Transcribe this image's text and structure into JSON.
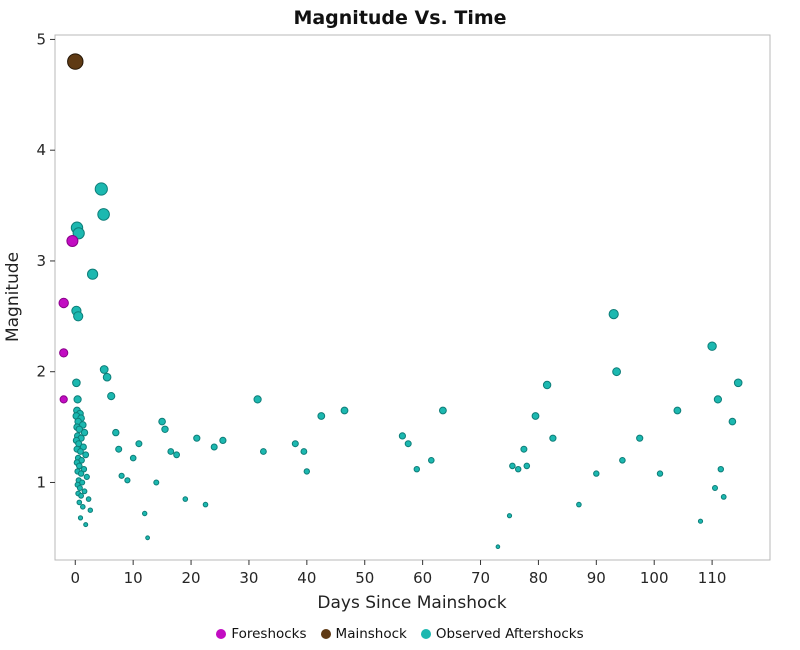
{
  "chart_data": {
    "type": "scatter",
    "title": "Magnitude Vs. Time",
    "xlabel": "Days Since Mainshock",
    "ylabel": "Magnitude",
    "xlim": [
      -3.5,
      120
    ],
    "ylim": [
      0.3,
      5.04
    ],
    "x_ticks": [
      0,
      10,
      20,
      30,
      40,
      50,
      60,
      70,
      80,
      90,
      100,
      110
    ],
    "y_ticks": [
      1,
      2,
      3,
      4,
      5
    ],
    "grid": false,
    "legend_position": "bottom-center",
    "marker_size_rule": "radius_px = 1.2 + 1.35 * magnitude",
    "series": [
      {
        "name": "Foreshocks",
        "color": "#c20cc2",
        "edge": "#8a008a",
        "z": 2,
        "points": [
          [
            -0.5,
            3.18
          ],
          [
            -2,
            2.62
          ],
          [
            -2,
            2.17
          ],
          [
            -2,
            1.75
          ]
        ]
      },
      {
        "name": "Mainshock",
        "color": "#5f3a14",
        "edge": "#241505",
        "z": 3,
        "points": [
          [
            0,
            4.8
          ]
        ]
      },
      {
        "name": "Observed Aftershocks",
        "color": "#1cb8b0",
        "edge": "#0d7d78",
        "z": 1,
        "points": [
          [
            0.3,
            3.3
          ],
          [
            0.6,
            3.25
          ],
          [
            0.2,
            2.55
          ],
          [
            0.5,
            2.5
          ],
          [
            3,
            2.88
          ],
          [
            0.2,
            1.9
          ],
          [
            0.4,
            1.75
          ],
          [
            0.3,
            1.65
          ],
          [
            0.8,
            1.62
          ],
          [
            0.2,
            1.6
          ],
          [
            1,
            1.58
          ],
          [
            0.5,
            1.55
          ],
          [
            1.3,
            1.52
          ],
          [
            0.3,
            1.5
          ],
          [
            0.7,
            1.48
          ],
          [
            1.6,
            1.45
          ],
          [
            0.4,
            1.42
          ],
          [
            1,
            1.4
          ],
          [
            0.2,
            1.38
          ],
          [
            0.6,
            1.35
          ],
          [
            1.4,
            1.32
          ],
          [
            0.3,
            1.3
          ],
          [
            0.9,
            1.28
          ],
          [
            1.8,
            1.25
          ],
          [
            0.5,
            1.22
          ],
          [
            1.1,
            1.2
          ],
          [
            0.3,
            1.18
          ],
          [
            0.7,
            1.15
          ],
          [
            1.5,
            1.12
          ],
          [
            0.4,
            1.1
          ],
          [
            1,
            1.08
          ],
          [
            2,
            1.05
          ],
          [
            0.6,
            1.02
          ],
          [
            1.2,
            1.0
          ],
          [
            0.4,
            0.98
          ],
          [
            0.8,
            0.95
          ],
          [
            1.6,
            0.92
          ],
          [
            0.5,
            0.9
          ],
          [
            1,
            0.88
          ],
          [
            2.3,
            0.85
          ],
          [
            0.7,
            0.82
          ],
          [
            1.3,
            0.78
          ],
          [
            2.6,
            0.75
          ],
          [
            0.9,
            0.68
          ],
          [
            1.8,
            0.62
          ],
          [
            4.5,
            3.65
          ],
          [
            4.9,
            3.42
          ],
          [
            5,
            2.02
          ],
          [
            5.5,
            1.95
          ],
          [
            6.2,
            1.78
          ],
          [
            7,
            1.45
          ],
          [
            7.5,
            1.3
          ],
          [
            8,
            1.06
          ],
          [
            9,
            1.02
          ],
          [
            10,
            1.22
          ],
          [
            11,
            1.35
          ],
          [
            12,
            0.72
          ],
          [
            12.5,
            0.5
          ],
          [
            14,
            1.0
          ],
          [
            15,
            1.55
          ],
          [
            15.5,
            1.48
          ],
          [
            16.5,
            1.28
          ],
          [
            17.5,
            1.25
          ],
          [
            19,
            0.85
          ],
          [
            21,
            1.4
          ],
          [
            22.5,
            0.8
          ],
          [
            24,
            1.32
          ],
          [
            25.5,
            1.38
          ],
          [
            31.5,
            1.75
          ],
          [
            32.5,
            1.28
          ],
          [
            38,
            1.35
          ],
          [
            39.5,
            1.28
          ],
          [
            40,
            1.1
          ],
          [
            42.5,
            1.6
          ],
          [
            46.5,
            1.65
          ],
          [
            56.5,
            1.42
          ],
          [
            57.5,
            1.35
          ],
          [
            59,
            1.12
          ],
          [
            61.5,
            1.2
          ],
          [
            63.5,
            1.65
          ],
          [
            73,
            0.42
          ],
          [
            75,
            0.7
          ],
          [
            75.5,
            1.15
          ],
          [
            76.5,
            1.12
          ],
          [
            77.5,
            1.3
          ],
          [
            78,
            1.15
          ],
          [
            79.5,
            1.6
          ],
          [
            81.5,
            1.88
          ],
          [
            82.5,
            1.4
          ],
          [
            87,
            0.8
          ],
          [
            90,
            1.08
          ],
          [
            93,
            2.52
          ],
          [
            93.5,
            2.0
          ],
          [
            94.5,
            1.2
          ],
          [
            97.5,
            1.4
          ],
          [
            101,
            1.08
          ],
          [
            104,
            1.65
          ],
          [
            108,
            0.65
          ],
          [
            110,
            2.23
          ],
          [
            110.5,
            0.95
          ],
          [
            111,
            1.75
          ],
          [
            111.5,
            1.12
          ],
          [
            112,
            0.87
          ],
          [
            113.5,
            1.55
          ],
          [
            114.5,
            1.9
          ]
        ]
      }
    ]
  }
}
